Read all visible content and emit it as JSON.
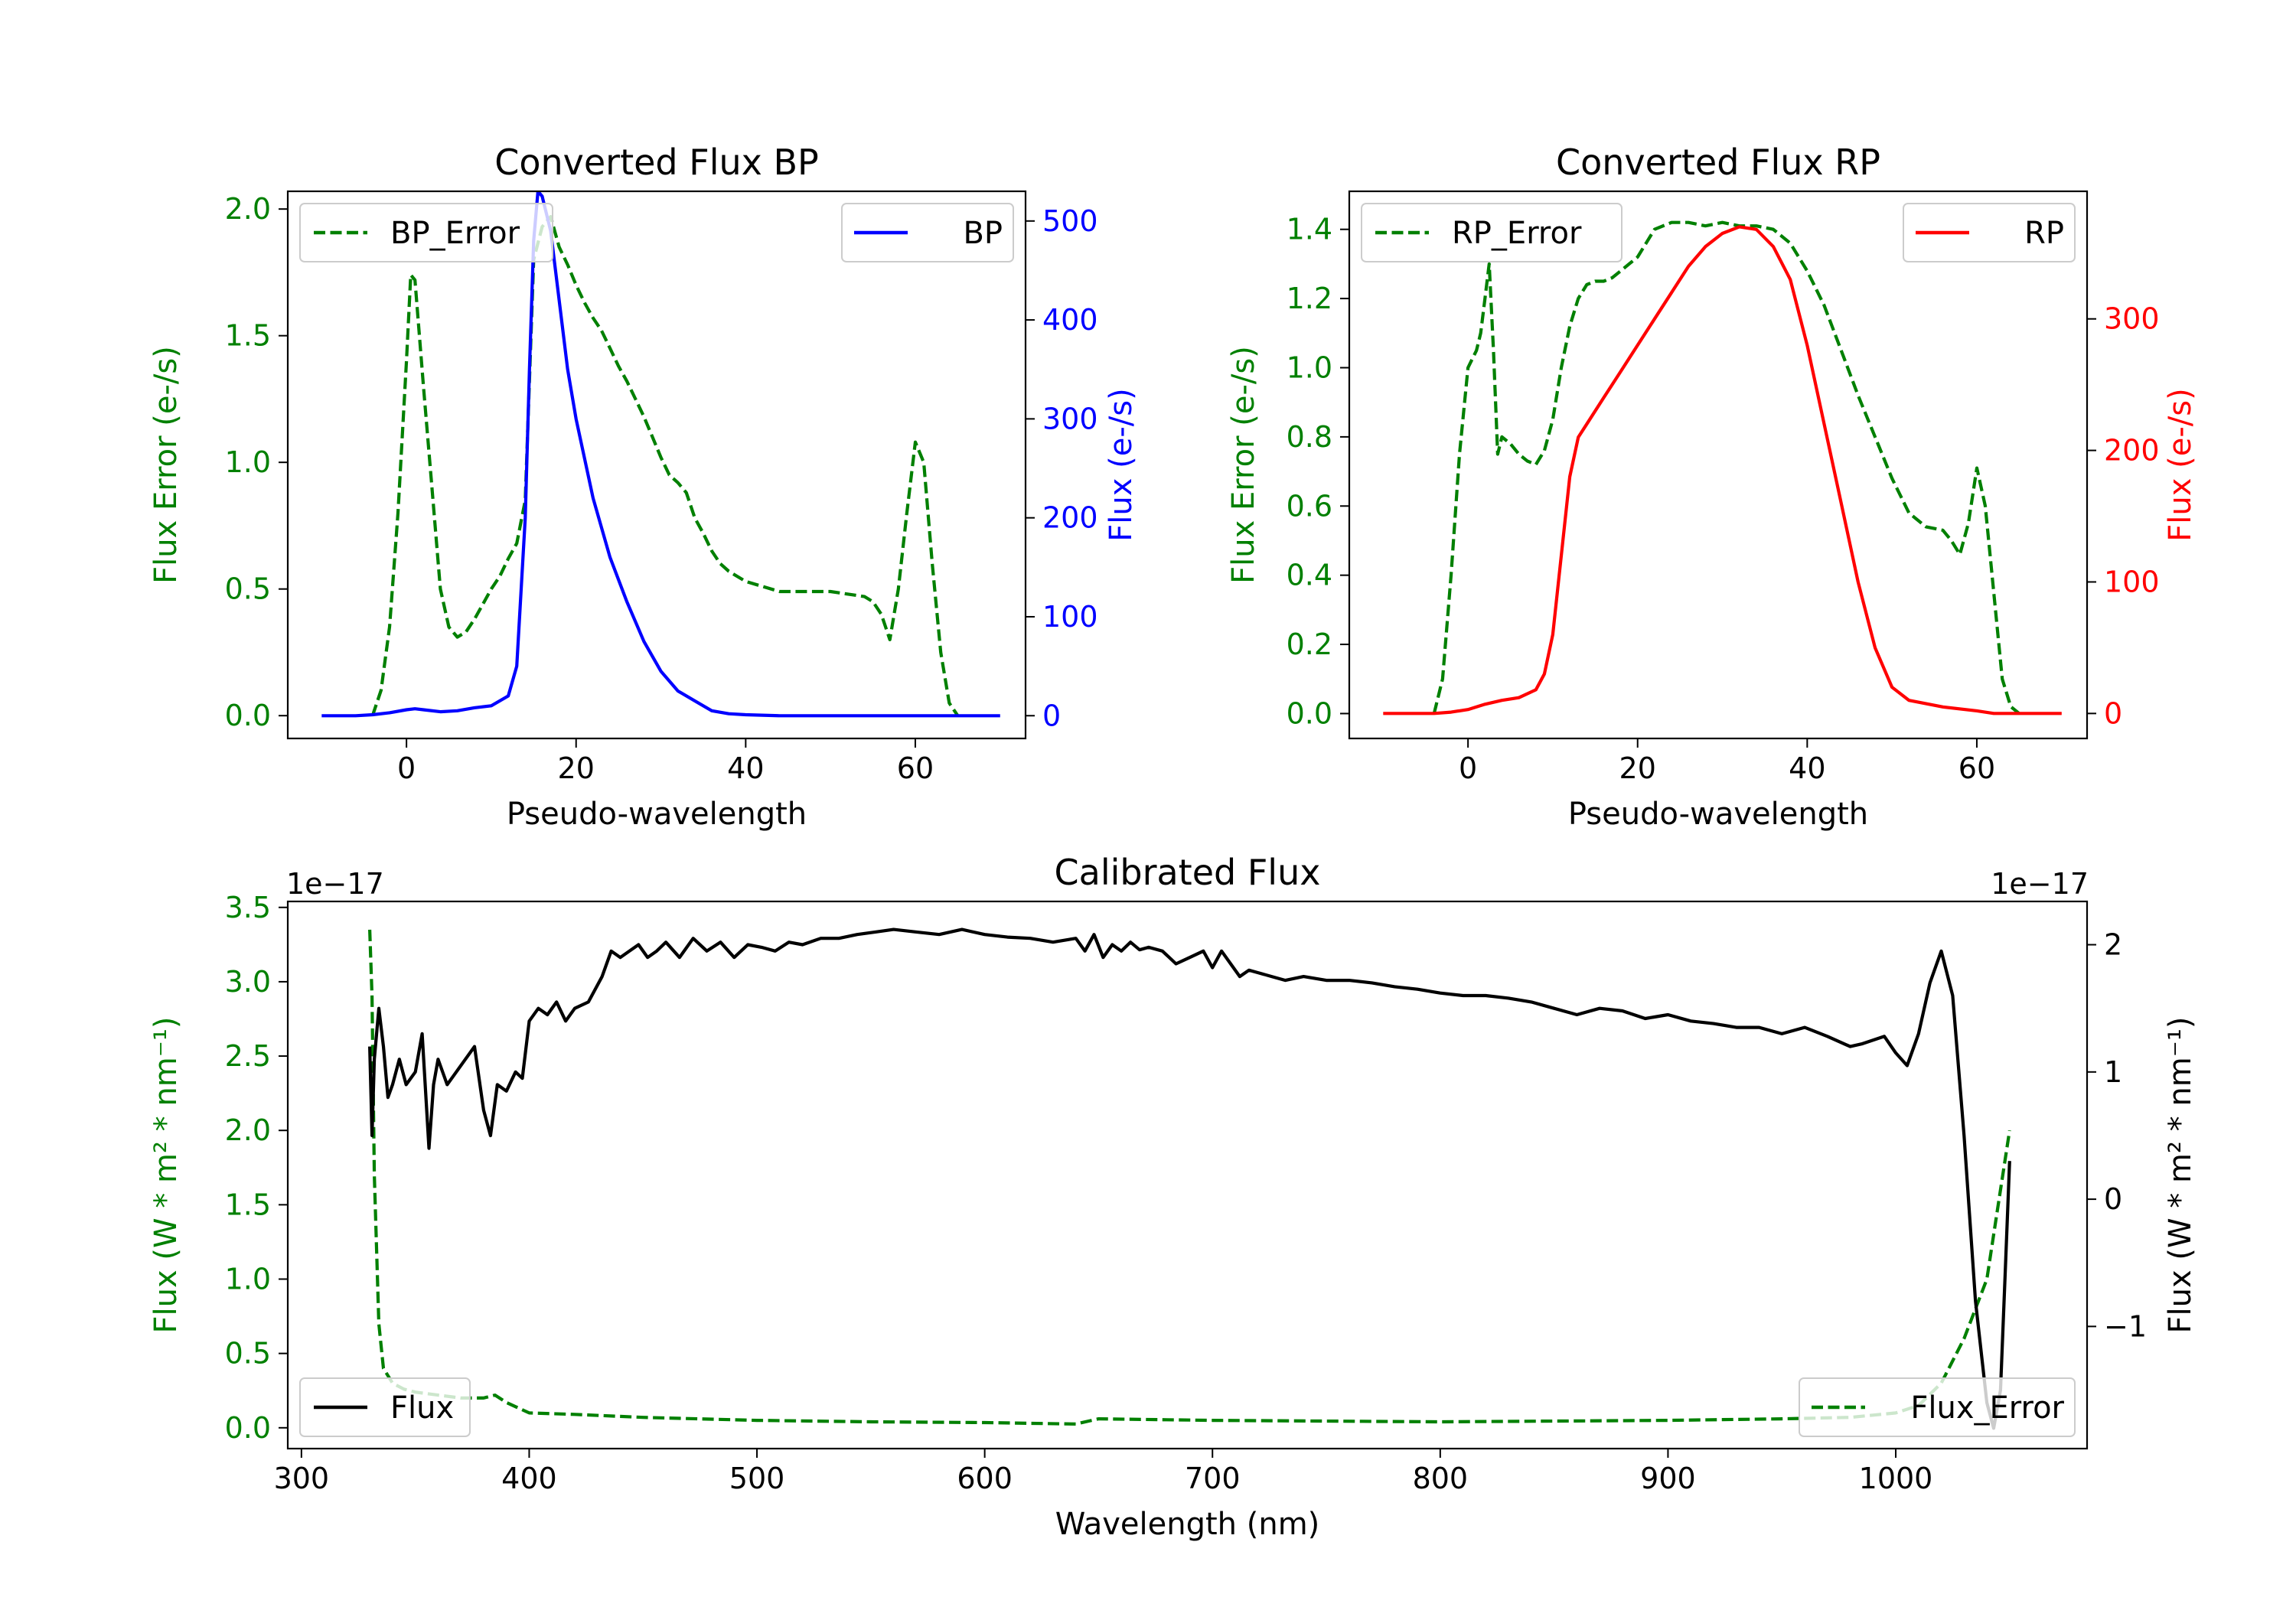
{
  "colors": {
    "error": "#008000",
    "bp": "#0000ff",
    "rp": "#ff0000",
    "flux": "#000000",
    "text": "#000000"
  },
  "chart_data": [
    {
      "type": "line",
      "id": "bp",
      "title": "Converted Flux BP",
      "xlabel": "Pseudo-wavelength",
      "ylabel_left": "Flux Error (e-/s)",
      "ylabel_right": "Flux (e-/s)",
      "xlim": [
        -14,
        73
      ],
      "ylim_left": [
        -0.09,
        2.07
      ],
      "ylim_right": [
        -23,
        530
      ],
      "xticks": [
        0,
        20,
        40,
        60
      ],
      "xtick_labels": [
        "0",
        "20",
        "40",
        "60"
      ],
      "yticks_left": [
        0,
        0.5,
        1,
        1.5,
        2
      ],
      "ytick_labels_left": [
        "0.0",
        "0.5",
        "1.0",
        "1.5",
        "2.0"
      ],
      "yticks_right": [
        0,
        100,
        200,
        300,
        400,
        500
      ],
      "ytick_labels_right": [
        "0",
        "100",
        "200",
        "300",
        "400",
        "500"
      ],
      "legend_left": "BP_Error",
      "legend_right": "BP",
      "series_error": {
        "name": "BP_Error",
        "axis": "left",
        "style": "dashed",
        "x": [
          -4,
          -3,
          -2,
          -1,
          0,
          0.5,
          1,
          2,
          3,
          4,
          5,
          6,
          7,
          8,
          9,
          10,
          11,
          12,
          13,
          14,
          15,
          16,
          17,
          18,
          19,
          20,
          21,
          22,
          23,
          24,
          25,
          26,
          27,
          28,
          29,
          30,
          31,
          32,
          33,
          34,
          35,
          36,
          37,
          38,
          40,
          42,
          44,
          46,
          48,
          50,
          52,
          54,
          55,
          56,
          57,
          58,
          59,
          60,
          61,
          62,
          63,
          64,
          65
        ],
        "y": [
          0.0,
          0.1,
          0.35,
          0.8,
          1.4,
          1.74,
          1.72,
          1.3,
          0.9,
          0.5,
          0.35,
          0.31,
          0.33,
          0.38,
          0.44,
          0.5,
          0.55,
          0.62,
          0.68,
          0.85,
          1.8,
          1.93,
          1.97,
          1.85,
          1.78,
          1.7,
          1.63,
          1.57,
          1.52,
          1.45,
          1.38,
          1.32,
          1.25,
          1.18,
          1.1,
          1.02,
          0.95,
          0.92,
          0.88,
          0.78,
          0.72,
          0.65,
          0.6,
          0.57,
          0.53,
          0.51,
          0.49,
          0.49,
          0.49,
          0.49,
          0.48,
          0.47,
          0.45,
          0.4,
          0.3,
          0.5,
          0.8,
          1.08,
          1.0,
          0.6,
          0.25,
          0.05,
          0.0
        ]
      },
      "series_flux": {
        "name": "BP",
        "axis": "right",
        "style": "solid",
        "x": [
          -10,
          -6,
          -4,
          -2,
          0,
          1,
          2,
          4,
          6,
          8,
          10,
          12,
          13,
          14,
          14.5,
          15,
          15.5,
          16,
          17,
          18,
          19,
          20,
          22,
          24,
          26,
          28,
          30,
          32,
          34,
          36,
          38,
          40,
          44,
          48,
          52,
          56,
          60,
          64,
          70
        ],
        "y": [
          0,
          0,
          1,
          3,
          6,
          7,
          6,
          4,
          5,
          8,
          10,
          20,
          50,
          200,
          350,
          480,
          530,
          525,
          490,
          420,
          350,
          300,
          220,
          160,
          115,
          75,
          45,
          25,
          15,
          5,
          2,
          1,
          0,
          0,
          0,
          0,
          0,
          0,
          0
        ]
      }
    },
    {
      "type": "line",
      "id": "rp",
      "title": "Converted Flux RP",
      "xlabel": "Pseudo-wavelength",
      "ylabel_left": "Flux Error (e-/s)",
      "ylabel_right": "Flux (e-/s)",
      "xlim": [
        -14,
        73
      ],
      "ylim_left": [
        -0.072,
        1.51
      ],
      "ylim_right": [
        -19,
        397
      ],
      "xticks": [
        0,
        20,
        40,
        60
      ],
      "xtick_labels": [
        "0",
        "20",
        "40",
        "60"
      ],
      "yticks_left": [
        0,
        0.2,
        0.4,
        0.6,
        0.8,
        1.0,
        1.2,
        1.4
      ],
      "ytick_labels_left": [
        "0.0",
        "0.2",
        "0.4",
        "0.6",
        "0.8",
        "1.0",
        "1.2",
        "1.4"
      ],
      "yticks_right": [
        0,
        100,
        200,
        300
      ],
      "ytick_labels_right": [
        "0",
        "100",
        "200",
        "300"
      ],
      "legend_left": "RP_Error",
      "legend_right": "RP",
      "series_error": {
        "name": "RP_Error",
        "axis": "left",
        "style": "dashed",
        "x": [
          -4,
          -3,
          -2,
          -1,
          0,
          1,
          1.5,
          2,
          2.5,
          3,
          3.5,
          4,
          5,
          6,
          7,
          8,
          9,
          10,
          11,
          12,
          13,
          14,
          15,
          16,
          17,
          18,
          19,
          20,
          21,
          22,
          24,
          26,
          28,
          30,
          32,
          34,
          36,
          38,
          40,
          42,
          44,
          46,
          48,
          50,
          52,
          54,
          56,
          57,
          58,
          59,
          60,
          61,
          62,
          63,
          64,
          65
        ],
        "y": [
          0.0,
          0.1,
          0.4,
          0.75,
          1.0,
          1.05,
          1.1,
          1.2,
          1.3,
          1.05,
          0.75,
          0.8,
          0.78,
          0.75,
          0.73,
          0.72,
          0.76,
          0.85,
          1.0,
          1.12,
          1.2,
          1.24,
          1.25,
          1.25,
          1.26,
          1.28,
          1.3,
          1.32,
          1.36,
          1.4,
          1.42,
          1.42,
          1.41,
          1.42,
          1.41,
          1.41,
          1.4,
          1.36,
          1.28,
          1.18,
          1.05,
          0.92,
          0.8,
          0.68,
          0.58,
          0.54,
          0.53,
          0.5,
          0.46,
          0.55,
          0.71,
          0.6,
          0.35,
          0.1,
          0.02,
          0.0
        ]
      },
      "series_flux": {
        "name": "RP",
        "axis": "right",
        "style": "solid",
        "x": [
          -10,
          -4,
          -2,
          0,
          2,
          4,
          6,
          8,
          9,
          10,
          11,
          12,
          13,
          14,
          16,
          18,
          20,
          22,
          24,
          26,
          28,
          30,
          32,
          34,
          36,
          38,
          40,
          42,
          44,
          46,
          48,
          50,
          52,
          56,
          60,
          62,
          64,
          70
        ],
        "y": [
          0,
          0,
          1,
          3,
          7,
          10,
          12,
          18,
          30,
          60,
          120,
          180,
          210,
          220,
          240,
          260,
          280,
          300,
          320,
          340,
          355,
          365,
          370,
          368,
          355,
          330,
          280,
          220,
          160,
          100,
          50,
          20,
          10,
          5,
          2,
          0,
          0,
          0
        ]
      }
    },
    {
      "type": "line",
      "id": "calibrated",
      "title": "Calibrated Flux",
      "xlabel": "Wavelength (nm)",
      "ylabel_left": "Flux (W * m² * nm⁻¹)",
      "ylabel_right": "Flux (W * m² * nm⁻¹)",
      "offset_left": "1e−17",
      "offset_right": "1e−17",
      "xlim": [
        294,
        1084
      ],
      "ylim_left": [
        -0.14,
        3.54
      ],
      "ylim_right": [
        -1.96,
        2.34
      ],
      "xticks": [
        300,
        400,
        500,
        600,
        700,
        800,
        900,
        1000
      ],
      "xtick_labels": [
        "300",
        "400",
        "500",
        "600",
        "700",
        "800",
        "900",
        "1000"
      ],
      "yticks_left": [
        0,
        0.5,
        1,
        1.5,
        2,
        2.5,
        3,
        3.5
      ],
      "ytick_labels_left": [
        "0.0",
        "0.5",
        "1.0",
        "1.5",
        "2.0",
        "2.5",
        "3.0",
        "3.5"
      ],
      "yticks_right": [
        -1,
        0,
        1,
        2
      ],
      "ytick_labels_right": [
        "−1",
        "0",
        "1",
        "2"
      ],
      "legend_left": "Flux",
      "legend_right": "Flux_Error",
      "series_error": {
        "name": "Flux_Error",
        "axis": "left",
        "style": "dashed",
        "x": [
          330,
          331,
          332,
          334,
          336,
          340,
          345,
          350,
          360,
          370,
          380,
          385,
          390,
          400,
          420,
          450,
          500,
          550,
          600,
          640,
          650,
          700,
          800,
          900,
          950,
          980,
          1000,
          1010,
          1020,
          1030,
          1040,
          1045,
          1050
        ],
        "y": [
          3.35,
          2.9,
          1.7,
          0.7,
          0.4,
          0.3,
          0.26,
          0.24,
          0.22,
          0.2,
          0.2,
          0.22,
          0.17,
          0.1,
          0.09,
          0.07,
          0.05,
          0.04,
          0.035,
          0.025,
          0.06,
          0.05,
          0.04,
          0.05,
          0.06,
          0.07,
          0.1,
          0.15,
          0.3,
          0.6,
          1.0,
          1.5,
          2.0
        ]
      },
      "series_flux": {
        "name": "Flux",
        "axis": "right",
        "style": "solid",
        "x": [
          330,
          331,
          332,
          334,
          336,
          338,
          340,
          343,
          346,
          350,
          353,
          356,
          358,
          360,
          364,
          368,
          372,
          376,
          380,
          383,
          386,
          390,
          394,
          397,
          400,
          404,
          408,
          412,
          416,
          420,
          426,
          432,
          436,
          440,
          444,
          448,
          452,
          456,
          460,
          466,
          472,
          478,
          484,
          490,
          496,
          502,
          508,
          514,
          520,
          528,
          536,
          544,
          552,
          560,
          570,
          580,
          590,
          600,
          610,
          620,
          630,
          640,
          644,
          648,
          652,
          656,
          660,
          664,
          668,
          672,
          678,
          684,
          690,
          696,
          700,
          704,
          708,
          712,
          716,
          720,
          726,
          732,
          740,
          750,
          760,
          770,
          780,
          790,
          800,
          810,
          820,
          830,
          840,
          850,
          860,
          870,
          880,
          890,
          900,
          910,
          920,
          930,
          940,
          950,
          960,
          970,
          980,
          985,
          990,
          995,
          1000,
          1005,
          1010,
          1015,
          1020,
          1025,
          1030,
          1035,
          1040,
          1043,
          1046,
          1048,
          1050
        ],
        "y": [
          1.2,
          0.5,
          1.1,
          1.5,
          1.2,
          0.8,
          0.9,
          1.1,
          0.9,
          1.0,
          1.3,
          0.4,
          0.9,
          1.1,
          0.9,
          1.0,
          1.1,
          1.2,
          0.7,
          0.5,
          0.9,
          0.85,
          1.0,
          0.95,
          1.4,
          1.5,
          1.45,
          1.55,
          1.4,
          1.5,
          1.55,
          1.75,
          1.95,
          1.9,
          1.95,
          2.0,
          1.9,
          1.95,
          2.02,
          1.9,
          2.05,
          1.95,
          2.02,
          1.9,
          2.0,
          1.98,
          1.95,
          2.02,
          2.0,
          2.05,
          2.05,
          2.08,
          2.1,
          2.12,
          2.1,
          2.08,
          2.12,
          2.08,
          2.06,
          2.05,
          2.02,
          2.05,
          1.95,
          2.08,
          1.9,
          2.0,
          1.95,
          2.02,
          1.96,
          1.98,
          1.95,
          1.85,
          1.9,
          1.95,
          1.82,
          1.95,
          1.85,
          1.75,
          1.8,
          1.78,
          1.75,
          1.72,
          1.75,
          1.72,
          1.72,
          1.7,
          1.67,
          1.65,
          1.62,
          1.6,
          1.6,
          1.58,
          1.55,
          1.5,
          1.45,
          1.5,
          1.48,
          1.42,
          1.45,
          1.4,
          1.38,
          1.35,
          1.35,
          1.3,
          1.35,
          1.28,
          1.2,
          1.22,
          1.25,
          1.28,
          1.15,
          1.05,
          1.3,
          1.7,
          1.95,
          1.6,
          0.5,
          -0.8,
          -1.6,
          -1.8,
          -1.5,
          -0.6,
          0.3
        ]
      }
    }
  ]
}
